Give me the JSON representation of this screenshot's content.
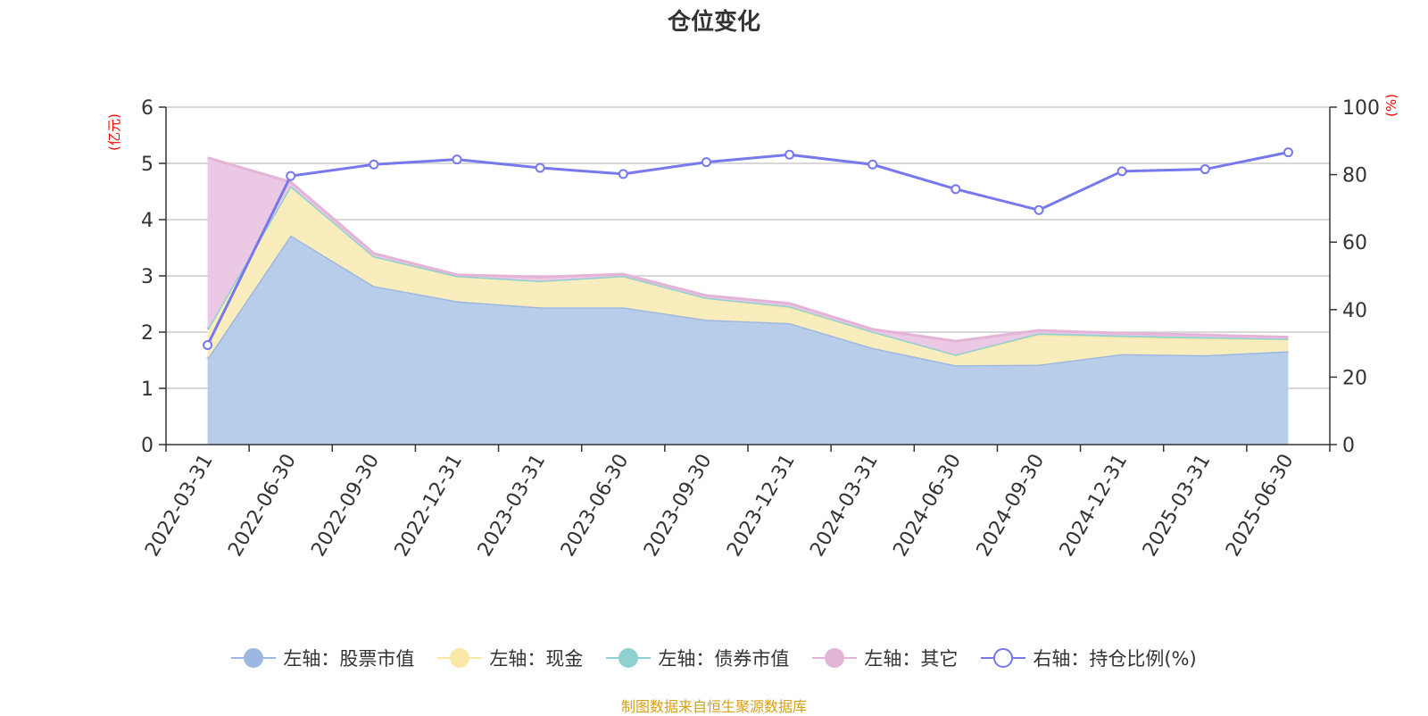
{
  "chart_data": {
    "type": "area",
    "title": "仓位变化",
    "x": [
      "2022-03-31",
      "2022-06-30",
      "2022-09-30",
      "2022-12-31",
      "2023-03-31",
      "2023-06-30",
      "2023-09-30",
      "2023-12-31",
      "2024-03-31",
      "2024-06-30",
      "2024-09-30",
      "2024-12-31",
      "2025-03-31",
      "2025-06-30"
    ],
    "y_left_label": "(亿元)",
    "y_right_label": "(%)",
    "y_left_lim": [
      0,
      6
    ],
    "y_left_ticks": [
      "0",
      "1",
      "2",
      "3",
      "4",
      "5",
      "6"
    ],
    "y_right_lim": [
      0,
      100
    ],
    "y_right_ticks": [
      "0",
      "20",
      "40",
      "60",
      "80",
      "100"
    ],
    "grid": true,
    "stacked": true,
    "legend_position": "bottom",
    "series": [
      {
        "name": "左轴：股票市值",
        "axis": "left",
        "color": "#9db8e0",
        "fill": "#b8cdea",
        "values": [
          1.53,
          3.72,
          2.82,
          2.55,
          2.44,
          2.44,
          2.22,
          2.16,
          1.72,
          1.41,
          1.42,
          1.61,
          1.59,
          1.66
        ]
      },
      {
        "name": "左轴：现金",
        "axis": "left",
        "color": "#f8e7a6",
        "fill": "#faedbd",
        "values": [
          0.52,
          0.88,
          0.53,
          0.45,
          0.47,
          0.56,
          0.39,
          0.28,
          0.29,
          0.19,
          0.53,
          0.3,
          0.29,
          0.22
        ]
      },
      {
        "name": "左轴：债券市值",
        "axis": "left",
        "color": "#8fd0d0",
        "fill": "#a7dada",
        "values": [
          0,
          0,
          0,
          0,
          0,
          0,
          0,
          0.02,
          0,
          0,
          0.03,
          0.03,
          0.03,
          0
        ]
      },
      {
        "name": "左轴：其它",
        "axis": "left",
        "color": "#e4b4d8",
        "fill": "#ebc8e3",
        "values": [
          3.05,
          0.07,
          0.05,
          0.02,
          0.07,
          0.03,
          0.04,
          0.05,
          0.04,
          0.24,
          0.05,
          0.04,
          0.04,
          0.03
        ]
      },
      {
        "name": "右轴：持仓比例(%)",
        "axis": "right",
        "color": "#7777ee",
        "type": "line",
        "values": [
          29.5,
          79.6,
          83.0,
          84.5,
          82.0,
          80.2,
          83.7,
          85.9,
          83.0,
          75.7,
          69.5,
          81.0,
          81.6,
          86.6
        ]
      }
    ]
  },
  "source_note": "制图数据来自恒生聚源数据库"
}
